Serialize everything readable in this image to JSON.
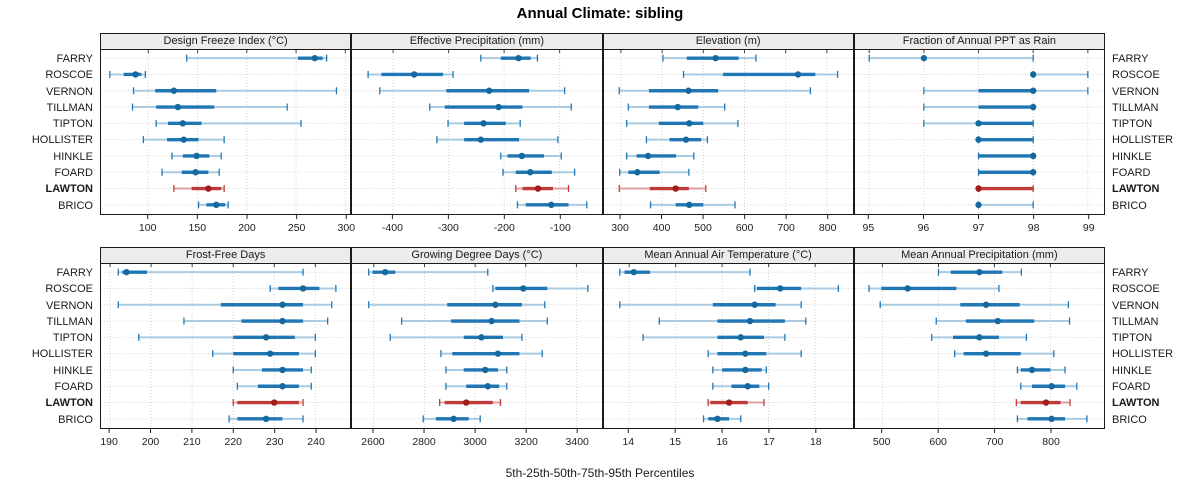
{
  "title": "Annual Climate: sibling",
  "caption": "5th-25th-50th-75th-95th Percentiles",
  "highlight_station": "LAWTON",
  "stations": [
    {
      "name": "FARRY",
      "bold": false
    },
    {
      "name": "ROSCOE",
      "bold": false
    },
    {
      "name": "VERNON",
      "bold": false
    },
    {
      "name": "TILLMAN",
      "bold": false
    },
    {
      "name": "TIPTON",
      "bold": false
    },
    {
      "name": "HOLLISTER",
      "bold": false
    },
    {
      "name": "HINKLE",
      "bold": false
    },
    {
      "name": "FOARD",
      "bold": false
    },
    {
      "name": "LAWTON",
      "bold": true
    },
    {
      "name": "BRICO",
      "bold": false
    }
  ],
  "colors": {
    "blue": "#2077b4",
    "blue_light": "#a9cce3",
    "blue_dot": "#16699f",
    "red": "#c03a3a",
    "red_light": "#dca1a1",
    "red_dot": "#a11d1d",
    "grid": "#d4d4d4",
    "border": "#1a1a1a",
    "strip_bg": "#ececec",
    "text": "#1a1a1a"
  },
  "chart_data": {
    "type": "scatter",
    "subtype": "percentile_interval_dotplot",
    "grid": "dotted",
    "percentile_labels": [
      "5th",
      "25th",
      "50th",
      "75th",
      "95th"
    ],
    "panels": [
      {
        "title": "Design Freeze Index (°C)",
        "row": 0,
        "ticks": [
          100,
          150,
          200,
          250,
          300
        ],
        "xlim": [
          52,
          305
        ],
        "series": [
          {
            "station": "FARRY",
            "values": [
              139,
              252,
              269,
              277,
              281
            ]
          },
          {
            "station": "ROSCOE",
            "values": [
              61,
              75,
              87,
              93,
              97
            ]
          },
          {
            "station": "VERNON",
            "values": [
              85,
              107,
              126,
              169,
              291
            ]
          },
          {
            "station": "TILLMAN",
            "values": [
              84,
              108,
              130,
              167,
              241
            ]
          },
          {
            "station": "TIPTON",
            "values": [
              108,
              120,
              135,
              154,
              255
            ]
          },
          {
            "station": "HOLLISTER",
            "values": [
              95,
              119,
              136,
              151,
              177
            ]
          },
          {
            "station": "HINKLE",
            "values": [
              124,
              135,
              149,
              162,
              174
            ]
          },
          {
            "station": "FOARD",
            "values": [
              114,
              134,
              148,
              161,
              172
            ]
          },
          {
            "station": "LAWTON",
            "values": [
              126,
              144,
              161,
              174,
              177
            ]
          },
          {
            "station": "BRICO",
            "values": [
              151,
              159,
              169,
              178,
              181
            ]
          }
        ]
      },
      {
        "title": "Effective Precipitation (mm)",
        "row": 0,
        "ticks": [
          -400,
          -300,
          -200,
          -100
        ],
        "xlim": [
          -474,
          -25
        ],
        "series": [
          {
            "station": "FARRY",
            "values": [
              -242,
              -206,
              -174,
              -152,
              -140
            ]
          },
          {
            "station": "ROSCOE",
            "values": [
              -445,
              -421,
              -362,
              -310,
              -292
            ]
          },
          {
            "station": "VERNON",
            "values": [
              -424,
              -304,
              -227,
              -155,
              -91
            ]
          },
          {
            "station": "TILLMAN",
            "values": [
              -334,
              -307,
              -210,
              -167,
              -79
            ]
          },
          {
            "station": "TIPTON",
            "values": [
              -301,
              -272,
              -237,
              -197,
              -171
            ]
          },
          {
            "station": "HOLLISTER",
            "values": [
              -321,
              -272,
              -242,
              -173,
              -103
            ]
          },
          {
            "station": "HINKLE",
            "values": [
              -206,
              -194,
              -168,
              -128,
              -97
            ]
          },
          {
            "station": "FOARD",
            "values": [
              -202,
              -179,
              -153,
              -114,
              -73
            ]
          },
          {
            "station": "LAWTON",
            "values": [
              -179,
              -167,
              -139,
              -112,
              -84
            ]
          },
          {
            "station": "BRICO",
            "values": [
              -176,
              -161,
              -115,
              -84,
              -51
            ]
          }
        ]
      },
      {
        "title": "Elevation (m)",
        "row": 0,
        "ticks": [
          300,
          400,
          500,
          600,
          700,
          800
        ],
        "xlim": [
          259,
          864
        ],
        "series": [
          {
            "station": "FARRY",
            "values": [
              402,
              460,
              530,
              586,
              628
            ]
          },
          {
            "station": "ROSCOE",
            "values": [
              452,
              548,
              730,
              772,
              826
            ]
          },
          {
            "station": "VERNON",
            "values": [
              296,
              368,
              464,
              536,
              760
            ]
          },
          {
            "station": "TILLMAN",
            "values": [
              318,
              368,
              438,
              488,
              552
            ]
          },
          {
            "station": "TIPTON",
            "values": [
              314,
              392,
              466,
              500,
              584
            ]
          },
          {
            "station": "HOLLISTER",
            "values": [
              362,
              418,
              458,
              495,
              510
            ]
          },
          {
            "station": "HINKLE",
            "values": [
              314,
              338,
              366,
              434,
              477
            ]
          },
          {
            "station": "FOARD",
            "values": [
              297,
              318,
              340,
              394,
              465
            ]
          },
          {
            "station": "LAWTON",
            "values": [
              296,
              370,
              433,
              465,
              506
            ]
          },
          {
            "station": "BRICO",
            "values": [
              372,
              433,
              466,
              500,
              577
            ]
          }
        ]
      },
      {
        "title": "Fraction of Annual PPT as Rain",
        "row": 0,
        "ticks": [
          95,
          96,
          97,
          98,
          99
        ],
        "xlim": [
          94.74,
          99.3
        ],
        "series": [
          {
            "station": "FARRY",
            "values": [
              95,
              96,
              96,
              96,
              98
            ]
          },
          {
            "station": "ROSCOE",
            "values": [
              98,
              98,
              98,
              98,
              99
            ]
          },
          {
            "station": "VERNON",
            "values": [
              96,
              97,
              98,
              98,
              99
            ]
          },
          {
            "station": "TILLMAN",
            "values": [
              96,
              97,
              98,
              98,
              98
            ]
          },
          {
            "station": "TIPTON",
            "values": [
              96,
              97,
              97,
              98,
              98
            ]
          },
          {
            "station": "HOLLISTER",
            "values": [
              97,
              97,
              97,
              98,
              98
            ]
          },
          {
            "station": "HINKLE",
            "values": [
              97,
              97,
              98,
              98,
              98
            ]
          },
          {
            "station": "FOARD",
            "values": [
              97,
              97,
              98,
              98,
              98
            ]
          },
          {
            "station": "LAWTON",
            "values": [
              97,
              97,
              97,
              98,
              98
            ]
          },
          {
            "station": "BRICO",
            "values": [
              97,
              97,
              97,
              97,
              98
            ]
          }
        ]
      },
      {
        "title": "Frost-Free Days",
        "row": 1,
        "ticks": [
          190,
          200,
          210,
          220,
          230,
          240
        ],
        "xlim": [
          187.8,
          248.5
        ],
        "series": [
          {
            "station": "FARRY",
            "values": [
              192,
              193,
              194,
              199,
              237
            ]
          },
          {
            "station": "ROSCOE",
            "values": [
              229,
              231,
              237,
              241,
              245
            ]
          },
          {
            "station": "VERNON",
            "values": [
              192,
              217,
              232,
              237,
              244
            ]
          },
          {
            "station": "TILLMAN",
            "values": [
              208,
              222,
              232,
              237,
              243
            ]
          },
          {
            "station": "TIPTON",
            "values": [
              197,
              220,
              228,
              235,
              240
            ]
          },
          {
            "station": "HOLLISTER",
            "values": [
              215,
              220,
              229,
              236,
              240
            ]
          },
          {
            "station": "HINKLE",
            "values": [
              220,
              227,
              232,
              237,
              239
            ]
          },
          {
            "station": "FOARD",
            "values": [
              221,
              226,
              232,
              236,
              239
            ]
          },
          {
            "station": "LAWTON",
            "values": [
              220,
              221,
              230,
              236,
              237
            ]
          },
          {
            "station": "BRICO",
            "values": [
              219,
              221,
              228,
              232,
              237
            ]
          }
        ]
      },
      {
        "title": "Growing Degree Days (°C)",
        "row": 1,
        "ticks": [
          2600,
          2800,
          3000,
          3200,
          3400
        ],
        "xlim": [
          2514,
          3498
        ],
        "series": [
          {
            "station": "FARRY",
            "values": [
              2580,
              2595,
              2645,
              2685,
              3050
            ]
          },
          {
            "station": "ROSCOE",
            "values": [
              3070,
              3080,
              3190,
              3285,
              3445
            ]
          },
          {
            "station": "VERNON",
            "values": [
              2580,
              2890,
              3080,
              3185,
              3275
            ]
          },
          {
            "station": "TILLMAN",
            "values": [
              2710,
              2905,
              3065,
              3175,
              3285
            ]
          },
          {
            "station": "TIPTON",
            "values": [
              2665,
              2955,
              3025,
              3110,
              3185
            ]
          },
          {
            "station": "HOLLISTER",
            "values": [
              2865,
              2910,
              3090,
              3175,
              3265
            ]
          },
          {
            "station": "HINKLE",
            "values": [
              2885,
              2955,
              3040,
              3090,
              3125
            ]
          },
          {
            "station": "FOARD",
            "values": [
              2885,
              2965,
              3050,
              3095,
              3125
            ]
          },
          {
            "station": "LAWTON",
            "values": [
              2860,
              2880,
              2965,
              3070,
              3100
            ]
          },
          {
            "station": "BRICO",
            "values": [
              2795,
              2845,
              2915,
              2975,
              3020
            ]
          }
        ]
      },
      {
        "title": "Mean Annual Air Temperature (°C)",
        "row": 1,
        "ticks": [
          14,
          15,
          16,
          17,
          18
        ],
        "xlim": [
          13.46,
          18.82
        ],
        "series": [
          {
            "station": "FARRY",
            "values": [
              13.8,
              13.9,
              14.1,
              14.45,
              16.6
            ]
          },
          {
            "station": "ROSCOE",
            "values": [
              16.7,
              16.75,
              17.25,
              17.7,
              18.5
            ]
          },
          {
            "station": "VERNON",
            "values": [
              13.8,
              15.8,
              16.7,
              17.15,
              17.7
            ]
          },
          {
            "station": "TILLMAN",
            "values": [
              14.65,
              15.9,
              16.6,
              17.35,
              17.8
            ]
          },
          {
            "station": "TIPTON",
            "values": [
              14.3,
              15.9,
              16.4,
              16.9,
              17.35
            ]
          },
          {
            "station": "HOLLISTER",
            "values": [
              15.7,
              15.9,
              16.5,
              16.95,
              17.7
            ]
          },
          {
            "station": "HINKLE",
            "values": [
              15.8,
              16.0,
              16.5,
              16.85,
              16.95
            ]
          },
          {
            "station": "FOARD",
            "values": [
              15.8,
              16.2,
              16.55,
              16.8,
              17.0
            ]
          },
          {
            "station": "LAWTON",
            "values": [
              15.7,
              15.75,
              16.15,
              16.55,
              16.9
            ]
          },
          {
            "station": "BRICO",
            "values": [
              15.6,
              15.7,
              15.9,
              16.15,
              16.4
            ]
          }
        ]
      },
      {
        "title": "Mean Annual Precipitation (mm)",
        "row": 1,
        "ticks": [
          500,
          600,
          700,
          800
        ],
        "xlim": [
          451,
          896
        ],
        "series": [
          {
            "station": "FARRY",
            "values": [
              600,
              622,
              673,
              714,
              748
            ]
          },
          {
            "station": "ROSCOE",
            "values": [
              476,
              498,
              545,
              632,
              708
            ]
          },
          {
            "station": "VERNON",
            "values": [
              496,
              639,
              685,
              745,
              832
            ]
          },
          {
            "station": "TILLMAN",
            "values": [
              596,
              649,
              706,
              771,
              834
            ]
          },
          {
            "station": "TIPTON",
            "values": [
              588,
              626,
              673,
              708,
              757
            ]
          },
          {
            "station": "HOLLISTER",
            "values": [
              629,
              645,
              685,
              747,
              806
            ]
          },
          {
            "station": "HINKLE",
            "values": [
              741,
              747,
              767,
              800,
              826
            ]
          },
          {
            "station": "FOARD",
            "values": [
              747,
              767,
              802,
              826,
              847
            ]
          },
          {
            "station": "LAWTON",
            "values": [
              739,
              747,
              792,
              818,
              835
            ]
          },
          {
            "station": "BRICO",
            "values": [
              741,
              759,
              802,
              826,
              865
            ]
          }
        ]
      }
    ]
  }
}
